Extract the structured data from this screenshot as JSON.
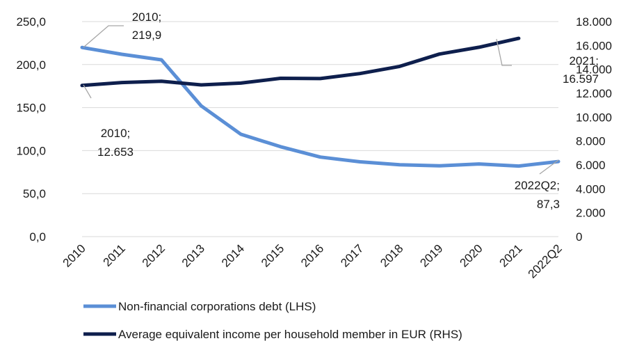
{
  "chart_data": {
    "type": "line",
    "categories": [
      "2010",
      "2011",
      "2012",
      "2013",
      "2014",
      "2015",
      "2016",
      "2017",
      "2018",
      "2019",
      "2020",
      "2021",
      "2022Q2"
    ],
    "series": [
      {
        "name": "Non-financial corporations debt (LHS)",
        "axis": "left",
        "color": "#5b8fd6",
        "values": [
          219.9,
          212,
          205.5,
          152,
          119,
          104.5,
          92.5,
          87,
          83.5,
          82.3,
          84.5,
          82,
          87.3
        ]
      },
      {
        "name": "Average equivalent income per household member in EUR (RHS)",
        "axis": "right",
        "color": "#0e1f4d",
        "values": [
          12653,
          12900,
          13000,
          12700,
          12850,
          13250,
          13230,
          13650,
          14250,
          15280,
          15850,
          16597,
          null
        ]
      }
    ],
    "y_left": {
      "min": 0,
      "max": 250,
      "ticks": [
        "0,0",
        "50,0",
        "100,0",
        "150,0",
        "200,0",
        "250,0"
      ]
    },
    "y_right": {
      "min": 0,
      "max": 18000,
      "ticks": [
        "0",
        "2.000",
        "4.000",
        "6.000",
        "8.000",
        "10.000",
        "12.000",
        "14.000",
        "16.000",
        "18.000"
      ]
    },
    "grid": true,
    "legend_position": "bottom",
    "annotations": [
      {
        "series": 0,
        "index": 0,
        "lines": [
          "2010;",
          "219,9"
        ]
      },
      {
        "series": 1,
        "index": 0,
        "lines": [
          "2010;",
          "12.653"
        ]
      },
      {
        "series": 1,
        "index": 11,
        "lines": [
          "2021;",
          "16.597"
        ]
      },
      {
        "series": 0,
        "index": 12,
        "lines": [
          "2022Q2;",
          "87,3"
        ]
      }
    ]
  }
}
